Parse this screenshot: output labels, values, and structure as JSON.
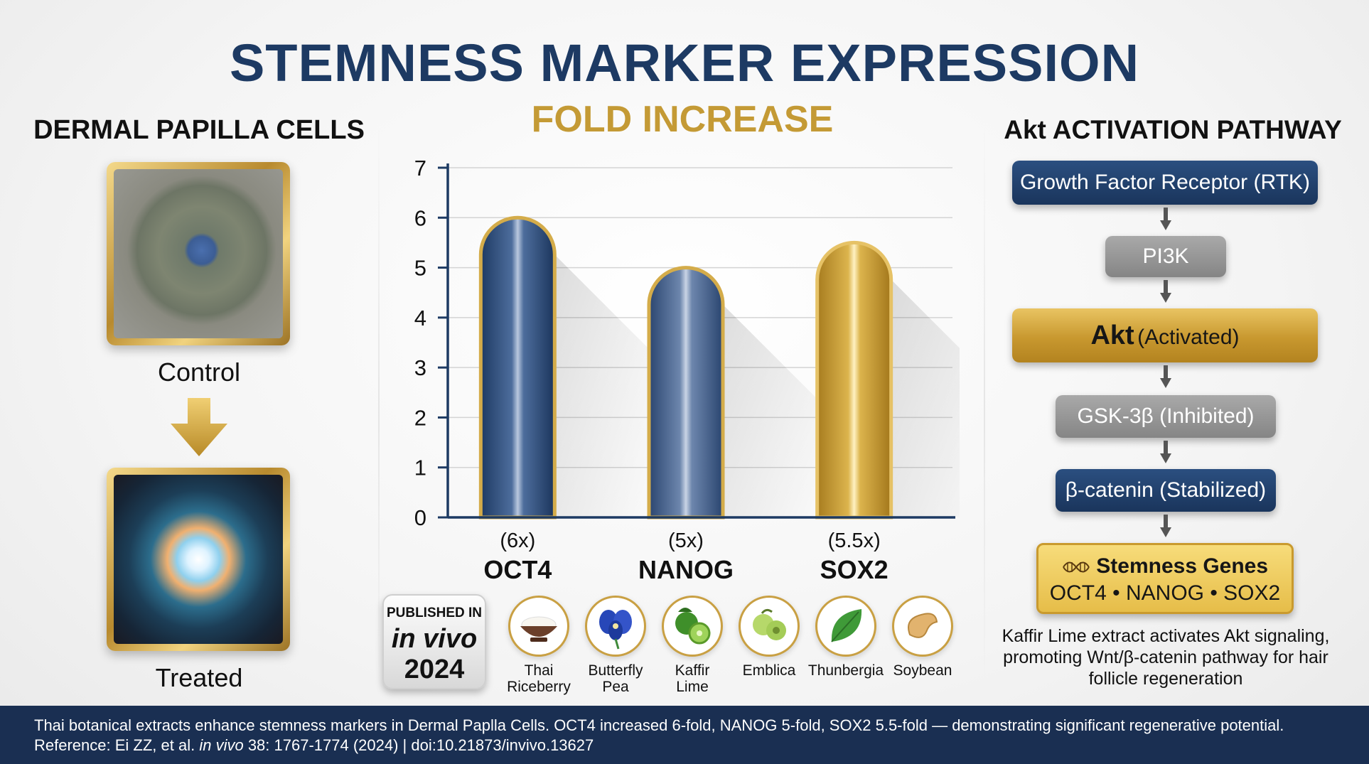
{
  "title": "STEMNESS MARKER EXPRESSION",
  "subtitle": "FOLD INCREASE",
  "left_panel": {
    "title": "DERMAL PAPILLA CELLS",
    "control_label": "Control",
    "treated_label": "Treated"
  },
  "chart_data": {
    "type": "bar",
    "title": "FOLD INCREASE",
    "categories": [
      "OCT4",
      "NANOG",
      "SOX2"
    ],
    "values": [
      6,
      5,
      5.5
    ],
    "value_labels": [
      "(6x)",
      "(5x)",
      "(5.5x)"
    ],
    "ylim": [
      0,
      7
    ],
    "yticks": [
      0,
      1,
      2,
      3,
      4,
      5,
      6,
      7
    ],
    "xlabel": "",
    "ylabel": "",
    "grid": true,
    "colors": [
      "#2a4a78",
      "#3e5b86",
      "#c89c32"
    ]
  },
  "pathway": {
    "title": "Akt ACTIVATION PATHWAY",
    "rtk": "Growth Factor Receptor (RTK)",
    "pi3k": "PI3K",
    "akt_main": "Akt",
    "akt_state": "(Activated)",
    "gsk": "GSK-3β (Inhibited)",
    "catenin": "β-catenin (Stabilized)",
    "genes_title": "Stemness Genes",
    "genes_list": "OCT4 • NANOG • SOX2",
    "note": "Kaffir Lime extract activates Akt signaling, promoting Wnt/β-catenin pathway for hair follicle regeneration"
  },
  "publication": {
    "line1": "PUBLISHED IN",
    "journal": "in vivo",
    "year": "2024"
  },
  "sources": [
    {
      "name": "thai-riceberry",
      "label_1": "Thai",
      "label_2": "Riceberry"
    },
    {
      "name": "butterfly-pea",
      "label_1": "Butterfly",
      "label_2": "Pea"
    },
    {
      "name": "kaffir-lime",
      "label_1": "Kaffir",
      "label_2": "Lime"
    },
    {
      "name": "emblica",
      "label_1": "Emblica",
      "label_2": ""
    },
    {
      "name": "thunbergia",
      "label_1": "Thunbergia",
      "label_2": ""
    },
    {
      "name": "soybean",
      "label_1": "Soybean",
      "label_2": ""
    }
  ],
  "footer": {
    "summary": "Thai botanical extracts enhance stemness markers in Dermal Paplla Cells. OCT4 increased 6-fold, NANOG 5-fold, SOX2 5.5-fold — demonstrating significant regenerative potential.",
    "ref_prefix": "Reference: Ei ZZ, et al.",
    "ref_journal": "in vivo",
    "ref_suffix": "38: 1767-1774 (2024) | doi:10.21873/invivo.13627"
  }
}
